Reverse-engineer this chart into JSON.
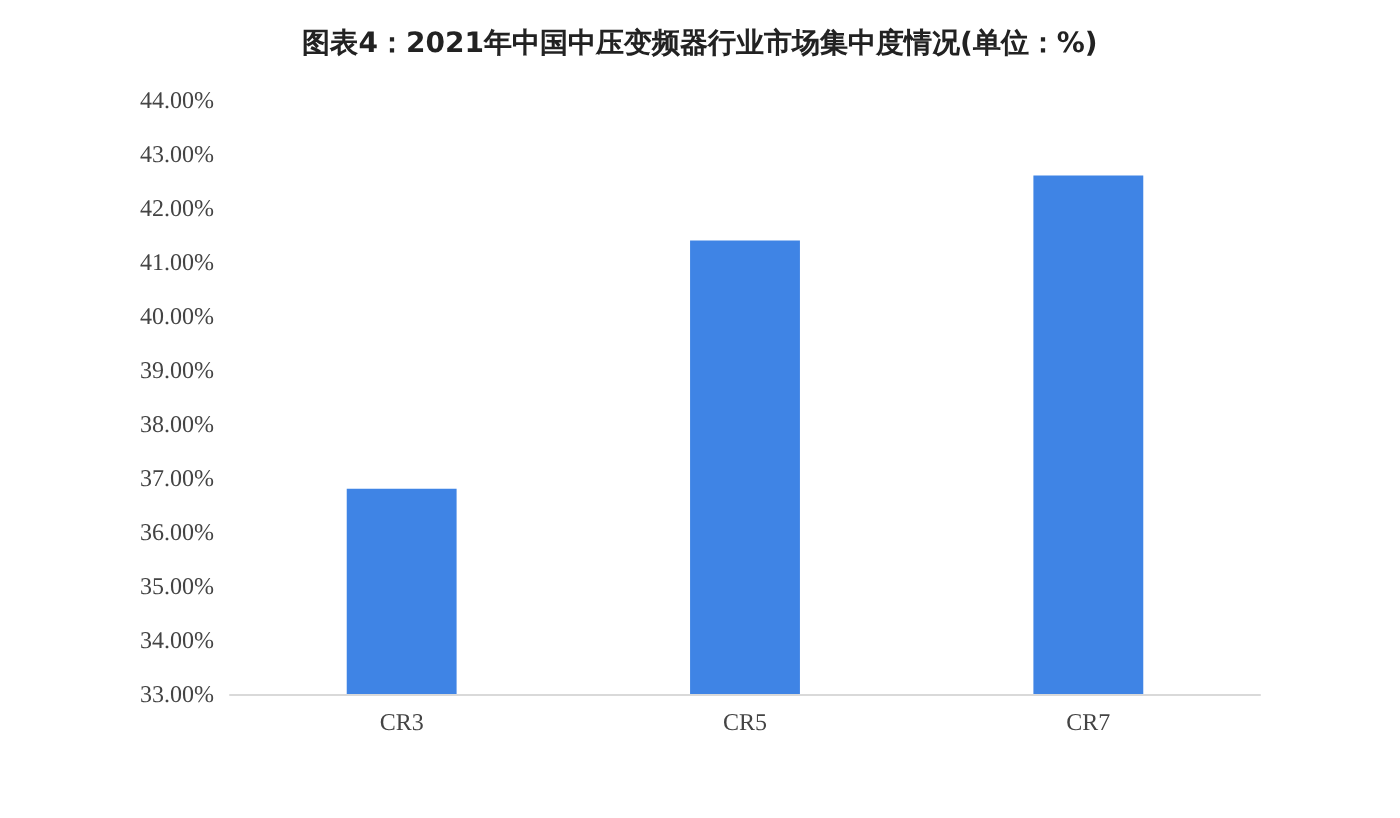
{
  "chart_data": {
    "type": "bar",
    "title": "图表4：2021年中国中压变频器行业市场集中度情况(单位：%)",
    "categories": [
      "CR3",
      "CR5",
      "CR7"
    ],
    "values": [
      36.8,
      41.4,
      42.6
    ],
    "color": "#3f84e5",
    "ylim": [
      33,
      44
    ],
    "yticks": [
      {
        "value": 33,
        "label": "33.00%"
      },
      {
        "value": 34,
        "label": "34.00%"
      },
      {
        "value": 35,
        "label": "35.00%"
      },
      {
        "value": 36,
        "label": "36.00%"
      },
      {
        "value": 37,
        "label": "37.00%"
      },
      {
        "value": 38,
        "label": "38.00%"
      },
      {
        "value": 39,
        "label": "39.00%"
      },
      {
        "value": 40,
        "label": "40.00%"
      },
      {
        "value": 41,
        "label": "41.00%"
      },
      {
        "value": 42,
        "label": "42.00%"
      },
      {
        "value": 43,
        "label": "43.00%"
      },
      {
        "value": 44,
        "label": "44.00%"
      }
    ],
    "grid": false
  }
}
